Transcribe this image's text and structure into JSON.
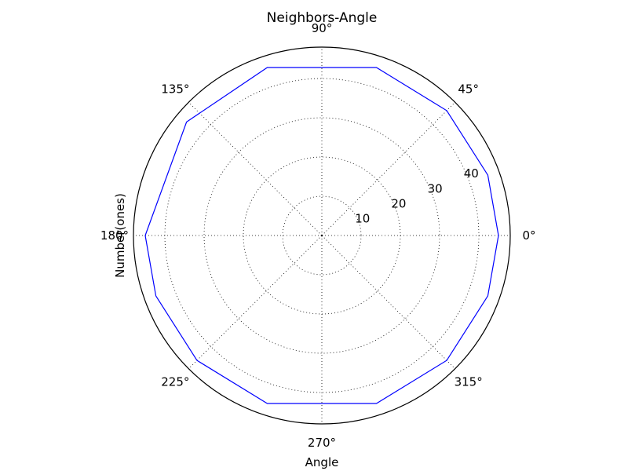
{
  "chart_data": {
    "type": "polar-line",
    "title": "Neighbors-Angle",
    "xlabel": "Angle",
    "ylabel": "Number(ones)",
    "theta_ticks_deg": [
      0,
      45,
      90,
      135,
      180,
      225,
      270,
      315
    ],
    "theta_tick_labels": [
      "0°",
      "45°",
      "90°",
      "135°",
      "180°",
      "225°",
      "270°",
      "315°"
    ],
    "r_ticks": [
      10,
      20,
      30,
      40
    ],
    "r_tick_labels": [
      "10",
      "20",
      "30",
      "40"
    ],
    "rlim": [
      0,
      48
    ],
    "grid": true,
    "series": [
      {
        "color": "#0000ff",
        "points": [
          {
            "theta": 180,
            "r": 45
          },
          {
            "theta": 200,
            "r": 45
          },
          {
            "theta": 225,
            "r": 45
          },
          {
            "theta": 252,
            "r": 45
          },
          {
            "theta": 288,
            "r": 45
          },
          {
            "theta": 315,
            "r": 45
          },
          {
            "theta": 340,
            "r": 45
          },
          {
            "theta": 0,
            "r": 45
          },
          {
            "theta": 20,
            "r": 45
          },
          {
            "theta": 45,
            "r": 45
          },
          {
            "theta": 72,
            "r": 45
          },
          {
            "theta": 108,
            "r": 45
          },
          {
            "theta": 140,
            "r": 45
          }
        ]
      }
    ]
  }
}
